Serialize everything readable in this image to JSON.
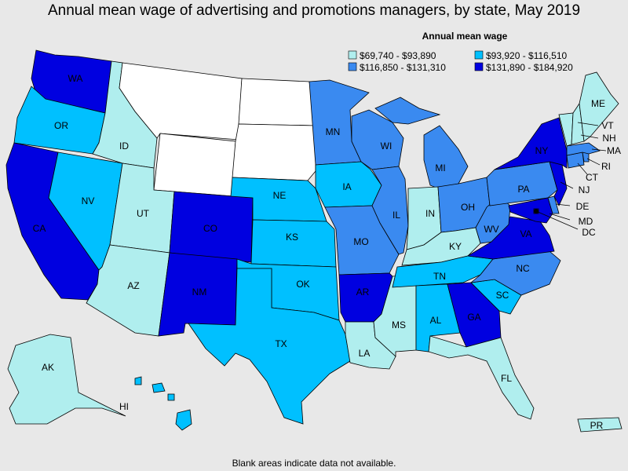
{
  "title": "Annual mean wage of advertising and promotions managers, by state, May 2019",
  "legend": {
    "title": "Annual mean wage",
    "items": [
      {
        "label": "$69,740 - $93,890",
        "color": "#b0eeee"
      },
      {
        "label": "$93,920 - $116,510",
        "color": "#00c0ff"
      },
      {
        "label": "$116,850 - $131,310",
        "color": "#3a8af0"
      },
      {
        "label": "$131,890 - $184,920",
        "color": "#0000e0"
      }
    ]
  },
  "footnote": "Blank areas indicate data not available.",
  "chart_data": {
    "type": "choropleth",
    "title": "Annual mean wage of advertising and promotions managers, by state, May 2019",
    "legend_title": "Annual mean wage",
    "bins": [
      "$69,740 - $93,890",
      "$93,920 - $116,510",
      "$116,850 - $131,310",
      "$131,890 - $184,920"
    ],
    "states": {
      "WA": 3,
      "OR": 1,
      "CA": 3,
      "NV": 1,
      "ID": 0,
      "MT": null,
      "WY": null,
      "UT": 0,
      "AZ": 0,
      "CO": 3,
      "NM": 3,
      "ND": null,
      "SD": null,
      "NE": 1,
      "KS": 1,
      "OK": 1,
      "TX": 1,
      "MN": 2,
      "IA": 1,
      "MO": 2,
      "AR": 3,
      "LA": 0,
      "WI": 2,
      "IL": 2,
      "MS": 0,
      "MI": 2,
      "IN": 0,
      "KY": 0,
      "TN": 1,
      "AL": 1,
      "OH": 2,
      "WV": 2,
      "GA": 3,
      "FL": 0,
      "SC": 1,
      "NC": 2,
      "VA": 3,
      "PA": 2,
      "NY": 3,
      "NJ": 3,
      "DE": 2,
      "MD": 3,
      "DC": 3,
      "CT": 2,
      "RI": 2,
      "MA": 2,
      "VT": 0,
      "NH": 0,
      "ME": 0,
      "AK": 0,
      "HI": 1,
      "PR": 0
    }
  }
}
